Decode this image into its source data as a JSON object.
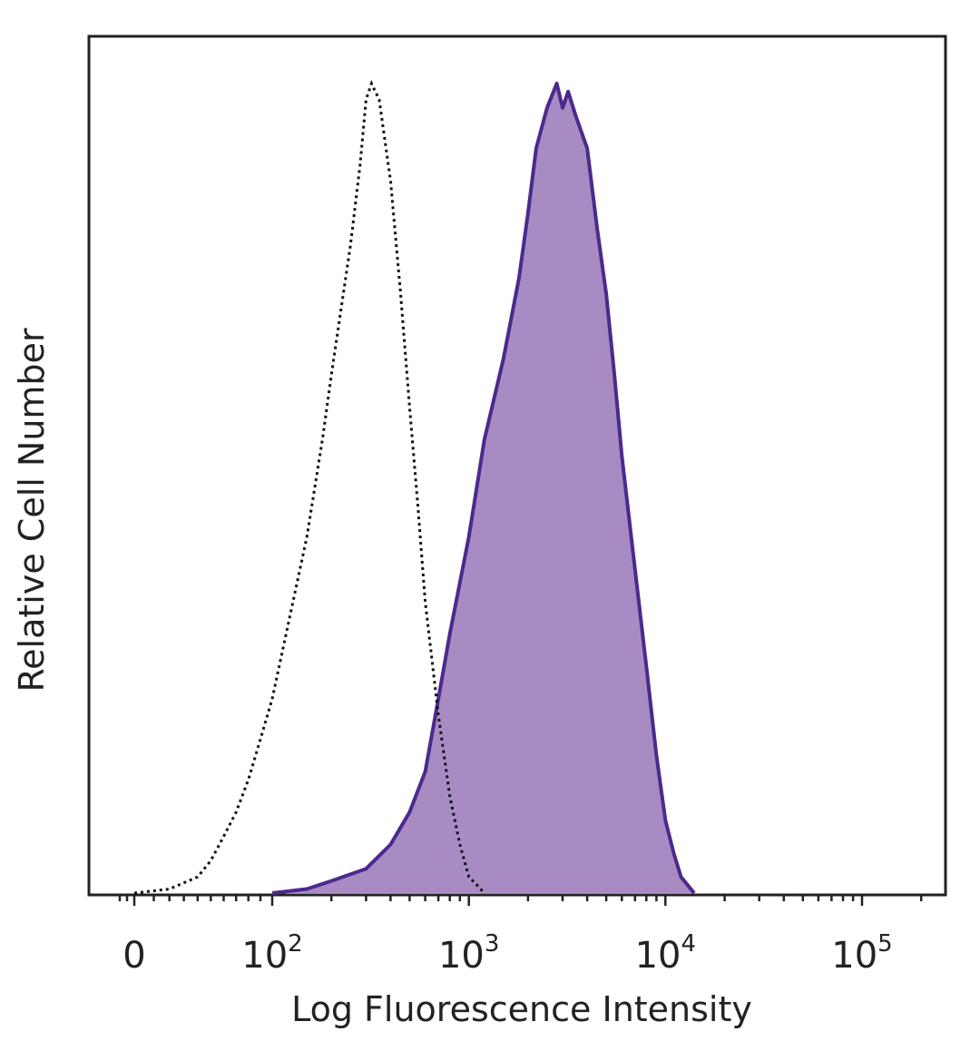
{
  "chart_data": {
    "type": "area",
    "xlabel": "Log Fluorescence Intensity",
    "ylabel": "Relative Cell Number",
    "x_scale": "biexponential",
    "xlim": [
      -30,
      250000
    ],
    "ylim": [
      0,
      100
    ],
    "x_ticks": [
      {
        "value": 0,
        "base": "0",
        "exp": ""
      },
      {
        "value": 100,
        "base": "10",
        "exp": "2"
      },
      {
        "value": 1000,
        "base": "10",
        "exp": "3"
      },
      {
        "value": 10000,
        "base": "10",
        "exp": "4"
      },
      {
        "value": 100000,
        "base": "10",
        "exp": "5"
      }
    ],
    "grid": false,
    "legend": "none",
    "series": [
      {
        "style": "filled",
        "fill": "#a98bc4",
        "stroke": "#4b2a8c",
        "x": [
          100,
          150,
          200,
          300,
          400,
          500,
          600,
          700,
          800,
          1000,
          1200,
          1500,
          1800,
          2000,
          2200,
          2500,
          2800,
          3000,
          3200,
          3500,
          4000,
          4500,
          5000,
          5500,
          6000,
          7000,
          8000,
          9000,
          10000,
          11000,
          12000,
          14000
        ],
        "y": [
          0,
          0.5,
          1.5,
          3,
          6,
          10,
          15,
          24,
          32,
          44,
          56,
          66,
          76,
          84,
          92,
          97,
          100,
          97,
          99,
          96,
          92,
          82,
          74,
          64,
          54,
          40,
          28,
          17,
          9,
          5,
          2,
          0
        ]
      },
      {
        "style": "dotted",
        "stroke": "#111111",
        "x": [
          0,
          20,
          40,
          50,
          60,
          70,
          80,
          90,
          100,
          120,
          150,
          180,
          200,
          250,
          280,
          300,
          320,
          350,
          400,
          450,
          500,
          550,
          600,
          700,
          800,
          900,
          1000,
          1100,
          1200
        ],
        "y": [
          0,
          0.5,
          2,
          4,
          7,
          10,
          14,
          19,
          24,
          33,
          44,
          56,
          64,
          80,
          90,
          98,
          100,
          98,
          88,
          74,
          60,
          48,
          36,
          22,
          12,
          6,
          2,
          1,
          0
        ]
      }
    ]
  }
}
